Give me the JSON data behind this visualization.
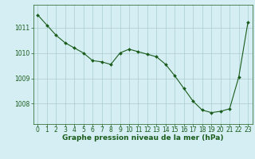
{
  "x": [
    0,
    1,
    2,
    3,
    4,
    5,
    6,
    7,
    8,
    9,
    10,
    11,
    12,
    13,
    14,
    15,
    16,
    17,
    18,
    19,
    20,
    21,
    22,
    23
  ],
  "y": [
    1011.5,
    1011.1,
    1010.7,
    1010.4,
    1010.2,
    1010.0,
    1009.7,
    1009.65,
    1009.55,
    1010.0,
    1010.15,
    1010.05,
    1009.95,
    1009.85,
    1009.55,
    1009.1,
    1008.6,
    1008.1,
    1007.75,
    1007.65,
    1007.7,
    1007.8,
    1009.05,
    1011.2
  ],
  "line_color": "#1a5c1a",
  "marker_color": "#1a5c1a",
  "bg_color": "#d4eef4",
  "grid_color": "#aacccc",
  "xlabel": "Graphe pression niveau de la mer (hPa)",
  "xlabel_fontsize": 6.5,
  "xlabel_color": "#1a5c1a",
  "ytick_values": [
    1008,
    1009,
    1010,
    1011
  ],
  "ytick_labels": [
    "1008",
    "1009",
    "1010",
    "1011"
  ],
  "ylim": [
    1007.2,
    1011.9
  ],
  "xlim": [
    -0.5,
    23.5
  ],
  "xtick_labels": [
    "0",
    "1",
    "2",
    "3",
    "4",
    "5",
    "6",
    "7",
    "8",
    "9",
    "10",
    "11",
    "12",
    "13",
    "14",
    "15",
    "16",
    "17",
    "18",
    "19",
    "20",
    "21",
    "22",
    "23"
  ],
  "tick_fontsize": 5.5,
  "tick_color": "#1a5c1a"
}
